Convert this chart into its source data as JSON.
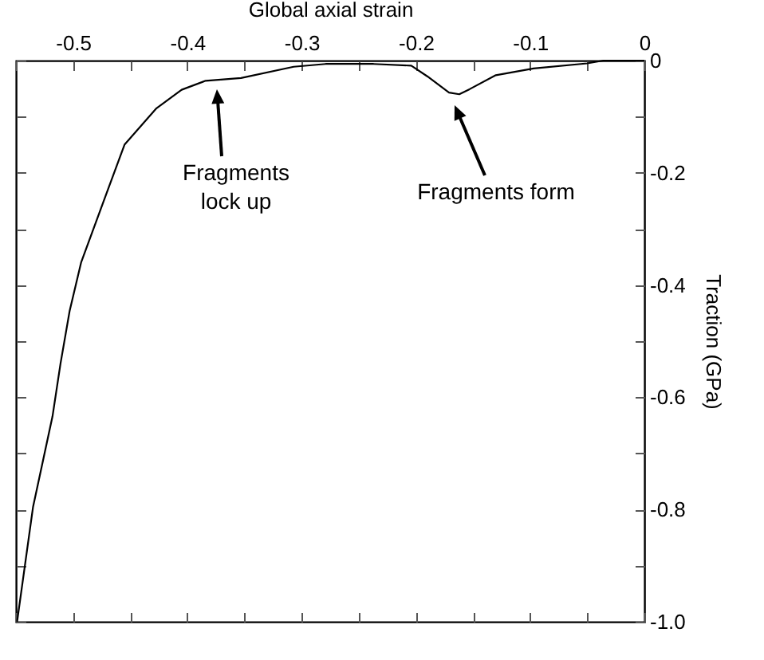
{
  "chart_data": {
    "type": "line",
    "xlabel": "Global axial strain",
    "ylabel": "Traction (GPa)",
    "x": [
      -0.549,
      -0.535,
      -0.518,
      -0.511,
      -0.503,
      -0.493,
      -0.469,
      -0.455,
      -0.427,
      -0.405,
      -0.384,
      -0.353,
      -0.307,
      -0.279,
      -0.237,
      -0.204,
      -0.19,
      -0.171,
      -0.162,
      -0.153,
      -0.13,
      -0.097,
      -0.05,
      -0.036,
      0
    ],
    "series": [
      {
        "color": "#000000",
        "values": [
          -1.0,
          -0.795,
          -0.634,
          -0.54,
          -0.446,
          -0.36,
          -0.227,
          -0.15,
          -0.085,
          -0.052,
          -0.036,
          -0.031,
          -0.011,
          -0.006,
          -0.006,
          -0.009,
          -0.028,
          -0.057,
          -0.06,
          -0.051,
          -0.026,
          -0.014,
          -0.005,
          0,
          0
        ]
      }
    ],
    "xlim": [
      -0.55,
      0
    ],
    "ylim": [
      -1.0,
      0
    ],
    "xticks": [
      {
        "value": -0.55,
        "label": null
      },
      -0.5,
      {
        "value": -0.45,
        "label": null
      },
      -0.4,
      {
        "value": -0.35,
        "label": null
      },
      -0.3,
      {
        "value": -0.25,
        "label": null
      },
      -0.2,
      {
        "value": -0.15,
        "label": null
      },
      -0.1,
      {
        "value": -0.05,
        "label": null
      },
      0
    ],
    "yticks": [
      0,
      {
        "value": -0.1,
        "label": null
      },
      -0.2,
      {
        "value": -0.3,
        "label": null
      },
      -0.4,
      {
        "value": -0.5,
        "label": null
      },
      -0.6,
      {
        "value": -0.7,
        "label": null
      },
      -0.8,
      {
        "value": -0.9,
        "label": null
      },
      {
        "value": -1.0,
        "label": "-1.0"
      }
    ],
    "annotations": [
      "Fragments\nlock up",
      "Fragments form"
    ],
    "grid": false,
    "legend": false,
    "marker": "none",
    "line_style": "solid"
  }
}
